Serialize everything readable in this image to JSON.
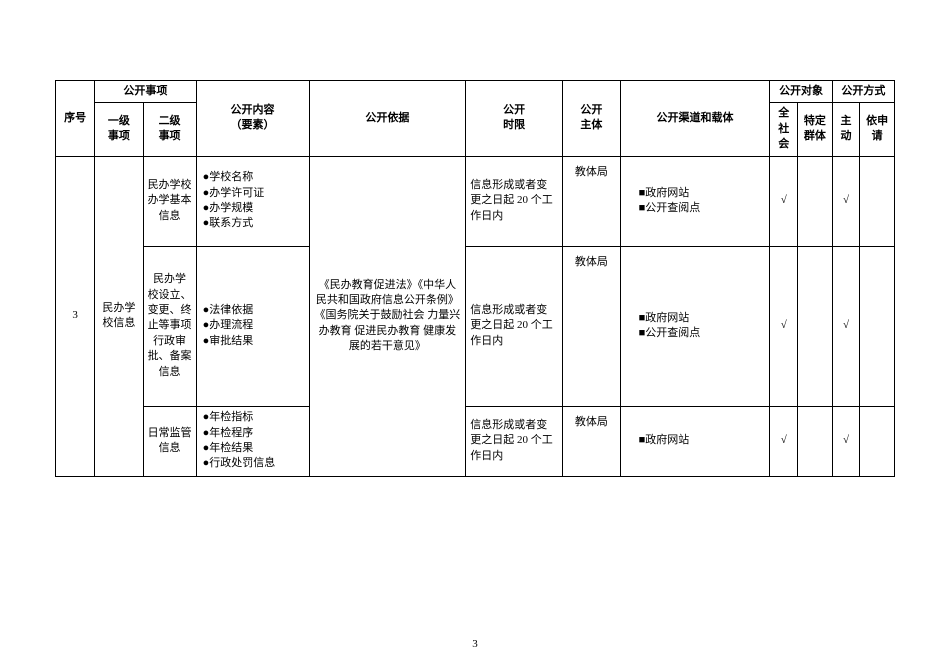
{
  "headers": {
    "seq": "序号",
    "item": "公开事项",
    "level1": "一级\n事项",
    "level2": "二级\n事项",
    "content": "公开内容\n（要素）",
    "basis": "公开依据",
    "timeLimit": "公开\n时限",
    "entity": "公开\n主体",
    "channel": "公开渠道和载体",
    "target": "公开对象",
    "allSociety": "全社会",
    "specificGroup": "特定群体",
    "method": "公开方式",
    "active": "主动",
    "onRequest": "依申请"
  },
  "seqNumber": "3",
  "level1Item": "民办学校信息",
  "basisText": "《民办教育促进法》《中华人民共和国政府信息公开条例》《国务院关于鼓励社会 力量兴办教育 促进民办教育 健康发展的若干意见》",
  "rows": [
    {
      "level2": "民办学校办学基本信息",
      "content": [
        "●学校名称",
        "●办学许可证",
        "●办学规模",
        "●联系方式"
      ],
      "timeLimit": "信息形成或者变更之日起 20 个工作日内",
      "entity": "教体局",
      "channel": [
        "■政府网站",
        "■公开查阅点"
      ],
      "allSociety": "√",
      "specificGroup": "",
      "active": "√",
      "onRequest": ""
    },
    {
      "level2": "民办学 校设立、变更、终止等事项行政审批、备案信息",
      "content": [
        "●法律依据",
        "●办理流程",
        "●审批结果"
      ],
      "timeLimit": "信息形成或者变更之日起 20 个工作日内",
      "entity": "教体局",
      "channel": [
        "■政府网站",
        "■公开查阅点"
      ],
      "allSociety": "√",
      "specificGroup": "",
      "active": "√",
      "onRequest": ""
    },
    {
      "level2": "日常监管信息",
      "content": [
        "●年检指标",
        "●年检程序",
        "●年检结果",
        "●行政处罚信息"
      ],
      "timeLimit": "信息形成或者变更之日起 20 个工作日内",
      "entity": "教体局",
      "channel": [
        "■政府网站"
      ],
      "allSociety": "√",
      "specificGroup": "",
      "active": "√",
      "onRequest": ""
    }
  ],
  "pageNumber": "3"
}
